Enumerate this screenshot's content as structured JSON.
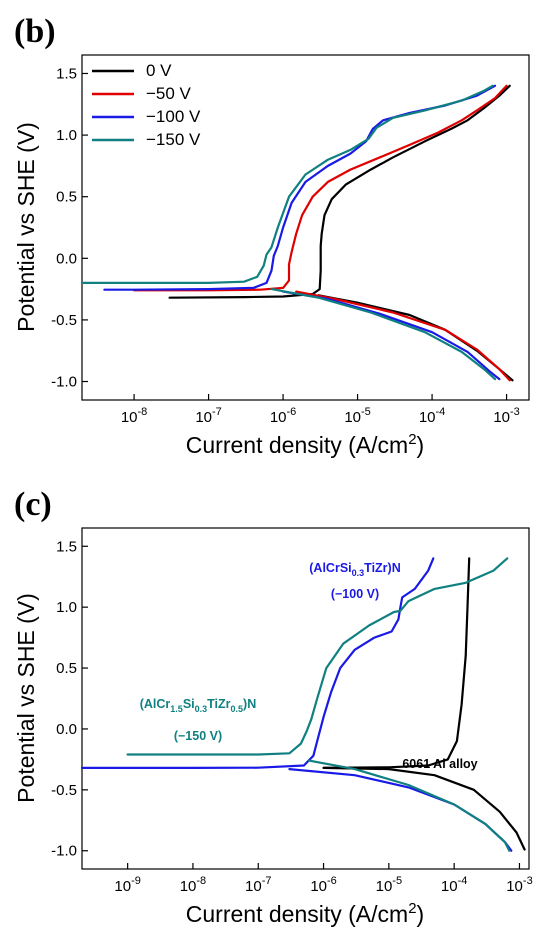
{
  "chart_data": [
    {
      "panel": "(b)",
      "type": "line",
      "title": "",
      "xlabel": "Current density (A/cm",
      "xlabel_sup": "2",
      "xlabel_end": ")",
      "ylabel": "Potential vs SHE (V)",
      "x_scale": "log",
      "xlim": [
        2e-09,
        0.002
      ],
      "ylim": [
        -1.15,
        1.65
      ],
      "x_ticks": [
        {
          "value": 1e-08,
          "base": "10",
          "exp": "-8"
        },
        {
          "value": 1e-07,
          "base": "10",
          "exp": "-7"
        },
        {
          "value": 1e-06,
          "base": "10",
          "exp": "-6"
        },
        {
          "value": 1e-05,
          "base": "10",
          "exp": "-5"
        },
        {
          "value": 0.0001,
          "base": "10",
          "exp": "-4"
        },
        {
          "value": 0.001,
          "base": "10",
          "exp": "-3"
        }
      ],
      "y_ticks": [
        "-1.0",
        "-0.5",
        "0.0",
        "0.5",
        "1.0",
        "1.5"
      ],
      "y_tick_values": [
        -1.0,
        -0.5,
        0.0,
        0.5,
        1.0,
        1.5
      ],
      "legend_position": "top-left",
      "series": [
        {
          "name": "0 V",
          "color": "#000000",
          "points": [
            [
              3e-08,
              -0.32
            ],
            [
              3e-07,
              -0.315
            ],
            [
              1e-06,
              -0.31
            ],
            [
              2.5e-06,
              -0.29
            ],
            [
              3.1e-06,
              -0.25
            ],
            [
              3.2e-06,
              -0.1
            ],
            [
              3.2e-06,
              0.1
            ],
            [
              3.3e-06,
              0.2
            ],
            [
              3.6e-06,
              0.35
            ],
            [
              4.5e-06,
              0.48
            ],
            [
              7e-06,
              0.6
            ],
            [
              1.5e-05,
              0.72
            ],
            [
              3e-05,
              0.82
            ],
            [
              8e-05,
              0.95
            ],
            [
              0.00018,
              1.05
            ],
            [
              0.0003,
              1.12
            ],
            [
              0.0005,
              1.22
            ],
            [
              0.0008,
              1.32
            ],
            [
              0.0011,
              1.4
            ]
          ]
        },
        {
          "name": "0 V",
          "color": "#000000",
          "points": [
            [
              3e-06,
              -0.3
            ],
            [
              1e-05,
              -0.36
            ],
            [
              5e-05,
              -0.46
            ],
            [
              0.00015,
              -0.58
            ],
            [
              0.0004,
              -0.75
            ],
            [
              0.0008,
              -0.9
            ],
            [
              0.0012,
              -0.99
            ]
          ]
        },
        {
          "name": "−50 V",
          "color": "#e00000",
          "points": [
            [
              1e-08,
              -0.26
            ],
            [
              1e-07,
              -0.26
            ],
            [
              5e-07,
              -0.255
            ],
            [
              1e-06,
              -0.24
            ],
            [
              1.2e-06,
              -0.18
            ],
            [
              1.2e-06,
              -0.05
            ],
            [
              1.3e-06,
              0.05
            ],
            [
              1.5e-06,
              0.2
            ],
            [
              1.8e-06,
              0.35
            ],
            [
              2.5e-06,
              0.5
            ],
            [
              4e-06,
              0.62
            ],
            [
              8e-06,
              0.72
            ],
            [
              2e-05,
              0.82
            ],
            [
              5e-05,
              0.92
            ],
            [
              0.00012,
              1.02
            ],
            [
              0.00025,
              1.12
            ],
            [
              0.0004,
              1.2
            ],
            [
              0.0007,
              1.3
            ],
            [
              0.001,
              1.4
            ]
          ]
        },
        {
          "name": "−50 V",
          "color": "#e00000",
          "points": [
            [
              1.5e-06,
              -0.27
            ],
            [
              5e-06,
              -0.33
            ],
            [
              3e-05,
              -0.44
            ],
            [
              0.00015,
              -0.58
            ],
            [
              0.0004,
              -0.74
            ],
            [
              0.0008,
              -0.9
            ],
            [
              0.0011,
              -0.99
            ]
          ]
        },
        {
          "name": "−100 V",
          "color": "#1a1ae6",
          "points": [
            [
              4e-09,
              -0.255
            ],
            [
              1e-08,
              -0.255
            ],
            [
              1e-07,
              -0.25
            ],
            [
              4e-07,
              -0.24
            ],
            [
              6e-07,
              -0.2
            ],
            [
              7e-07,
              -0.1
            ],
            [
              7.5e-07,
              0.02
            ],
            [
              8.5e-07,
              0.1
            ],
            [
              1e-06,
              0.25
            ],
            [
              1.3e-06,
              0.45
            ],
            [
              2e-06,
              0.62
            ],
            [
              4e-06,
              0.75
            ],
            [
              8e-06,
              0.85
            ],
            [
              1.3e-05,
              0.95
            ],
            [
              1.6e-05,
              1.05
            ],
            [
              2.2e-05,
              1.12
            ],
            [
              5e-05,
              1.18
            ],
            [
              0.00015,
              1.24
            ],
            [
              0.0004,
              1.32
            ],
            [
              0.0007,
              1.4
            ]
          ]
        },
        {
          "name": "−100 V",
          "color": "#1a1ae6",
          "points": [
            [
              1e-06,
              -0.27
            ],
            [
              4e-06,
              -0.33
            ],
            [
              2e-05,
              -0.45
            ],
            [
              0.0001,
              -0.6
            ],
            [
              0.0003,
              -0.76
            ],
            [
              0.0006,
              -0.92
            ],
            [
              0.0008,
              -0.98
            ]
          ]
        },
        {
          "name": "−150 V",
          "color": "#108080",
          "points": [
            [
              2e-09,
              -0.2
            ],
            [
              1e-08,
              -0.2
            ],
            [
              1e-07,
              -0.2
            ],
            [
              3e-07,
              -0.19
            ],
            [
              4.5e-07,
              -0.15
            ],
            [
              5.5e-07,
              -0.06
            ],
            [
              6e-07,
              0.03
            ],
            [
              7e-07,
              0.09
            ],
            [
              8.5e-07,
              0.25
            ],
            [
              1.2e-06,
              0.5
            ],
            [
              2e-06,
              0.68
            ],
            [
              4e-06,
              0.8
            ],
            [
              8e-06,
              0.88
            ],
            [
              1.4e-05,
              0.97
            ],
            [
              1.8e-05,
              1.06
            ],
            [
              3e-05,
              1.14
            ],
            [
              8e-05,
              1.2
            ],
            [
              0.00025,
              1.28
            ],
            [
              0.0005,
              1.36
            ],
            [
              0.00065,
              1.4
            ]
          ]
        },
        {
          "name": "−150 V",
          "color": "#108080",
          "points": [
            [
              7e-07,
              -0.25
            ],
            [
              3e-06,
              -0.32
            ],
            [
              1.5e-05,
              -0.44
            ],
            [
              8e-05,
              -0.6
            ],
            [
              0.00025,
              -0.76
            ],
            [
              0.0005,
              -0.9
            ],
            [
              0.0007,
              -0.98
            ]
          ]
        }
      ],
      "legend": [
        {
          "label": "0 V",
          "color": "#000000"
        },
        {
          "label": "−50 V",
          "color": "#e00000"
        },
        {
          "label": "−100 V",
          "color": "#1a1ae6"
        },
        {
          "label": "−150 V",
          "color": "#108080"
        }
      ]
    },
    {
      "panel": "(c)",
      "type": "line",
      "title": "",
      "xlabel": "Current density (A/cm",
      "xlabel_sup": "2",
      "xlabel_end": ")",
      "ylabel": "Potential vs SHE (V)",
      "x_scale": "log",
      "xlim": [
        2e-10,
        0.0014
      ],
      "ylim": [
        -1.15,
        1.65
      ],
      "x_ticks": [
        {
          "value": 1e-09,
          "base": "10",
          "exp": "-9"
        },
        {
          "value": 1e-08,
          "base": "10",
          "exp": "-8"
        },
        {
          "value": 1e-07,
          "base": "10",
          "exp": "-7"
        },
        {
          "value": 1e-06,
          "base": "10",
          "exp": "-6"
        },
        {
          "value": 1e-05,
          "base": "10",
          "exp": "-5"
        },
        {
          "value": 0.0001,
          "base": "10",
          "exp": "-4"
        },
        {
          "value": 0.001,
          "base": "10",
          "exp": "-3"
        }
      ],
      "y_ticks": [
        "-1.0",
        "-0.5",
        "0.0",
        "0.5",
        "1.0",
        "1.5"
      ],
      "y_tick_values": [
        -1.0,
        -0.5,
        0.0,
        0.5,
        1.0,
        1.5
      ],
      "series": [
        {
          "name": "6061 Al alloy",
          "color": "#000000",
          "points": [
            [
              1e-06,
              -0.32
            ],
            [
              1e-05,
              -0.315
            ],
            [
              4e-05,
              -0.3
            ],
            [
              8e-05,
              -0.25
            ],
            [
              0.00011,
              -0.1
            ],
            [
              0.00013,
              0.2
            ],
            [
              0.00015,
              0.6
            ],
            [
              0.00016,
              1.0
            ],
            [
              0.00017,
              1.4
            ]
          ]
        },
        {
          "name": "6061 Al alloy",
          "color": "#000000",
          "points": [
            [
              1e-06,
              -0.32
            ],
            [
              1e-05,
              -0.33
            ],
            [
              5e-05,
              -0.38
            ],
            [
              0.0002,
              -0.5
            ],
            [
              0.0005,
              -0.68
            ],
            [
              0.0009,
              -0.85
            ],
            [
              0.0012,
              -0.99
            ]
          ]
        },
        {
          "name": "(AlCrSi0.3TiZr)N (−100 V)",
          "color": "#1a1ae6",
          "points": [
            [
              2e-10,
              -0.32
            ],
            [
              1e-09,
              -0.32
            ],
            [
              1e-08,
              -0.32
            ],
            [
              1e-07,
              -0.318
            ],
            [
              5e-07,
              -0.3
            ],
            [
              7e-07,
              -0.22
            ],
            [
              8e-07,
              -0.1
            ],
            [
              1e-06,
              0.1
            ],
            [
              1.3e-06,
              0.3
            ],
            [
              1.8e-06,
              0.5
            ],
            [
              3e-06,
              0.65
            ],
            [
              6e-06,
              0.75
            ],
            [
              1.1e-05,
              0.8
            ],
            [
              1.4e-05,
              0.9
            ],
            [
              1.5e-05,
              1.0
            ],
            [
              1.6e-05,
              1.08
            ],
            [
              2.5e-05,
              1.15
            ],
            [
              4e-05,
              1.3
            ],
            [
              4.8e-05,
              1.4
            ]
          ]
        },
        {
          "name": "(AlCrSi0.3TiZr)N (−100 V)",
          "color": "#1a1ae6",
          "points": [
            [
              3e-07,
              -0.33
            ],
            [
              3e-06,
              -0.38
            ],
            [
              2e-05,
              -0.48
            ],
            [
              0.0001,
              -0.62
            ],
            [
              0.0003,
              -0.78
            ],
            [
              0.0006,
              -0.93
            ],
            [
              0.00075,
              -1.0
            ]
          ]
        },
        {
          "name": "(AlCr1.5Si0.3TiZr0.5)N (−150 V)",
          "color": "#108080",
          "points": [
            [
              1e-09,
              -0.21
            ],
            [
              1e-08,
              -0.21
            ],
            [
              1e-07,
              -0.21
            ],
            [
              3e-07,
              -0.2
            ],
            [
              4.5e-07,
              -0.12
            ],
            [
              5.5e-07,
              -0.02
            ],
            [
              6.5e-07,
              0.08
            ],
            [
              8e-07,
              0.25
            ],
            [
              1.1e-06,
              0.5
            ],
            [
              2e-06,
              0.7
            ],
            [
              5e-06,
              0.85
            ],
            [
              1.2e-05,
              0.96
            ],
            [
              1.5e-05,
              0.97
            ],
            [
              2e-05,
              1.05
            ],
            [
              5e-05,
              1.15
            ],
            [
              0.00015,
              1.2
            ],
            [
              0.0004,
              1.3
            ],
            [
              0.00065,
              1.4
            ]
          ]
        },
        {
          "name": "(AlCr1.5Si0.3TiZr0.5)N (−150 V)",
          "color": "#108080",
          "points": [
            [
              6e-07,
              -0.26
            ],
            [
              3e-06,
              -0.33
            ],
            [
              2e-05,
              -0.46
            ],
            [
              0.0001,
              -0.62
            ],
            [
              0.0003,
              -0.78
            ],
            [
              0.0006,
              -0.93
            ],
            [
              0.0007,
              -1.0
            ]
          ]
        }
      ],
      "annotations": [
        {
          "parts": [
            [
              "(AlCrSi",
              ""
            ],
            [
              "0.3",
              "sub"
            ],
            [
              "TiZr)N",
              ""
            ]
          ],
          "color": "#1a1ae6"
        },
        {
          "parts": [
            [
              "(−100 V)",
              ""
            ]
          ],
          "color": "#1a1ae6"
        },
        {
          "parts": [
            [
              "(AlCr",
              ""
            ],
            [
              "1.5",
              "sub"
            ],
            [
              "Si",
              ""
            ],
            [
              "0.3",
              "sub"
            ],
            [
              "TiZr",
              ""
            ],
            [
              "0.5",
              "sub"
            ],
            [
              ")N",
              ""
            ]
          ],
          "color": "#108080"
        },
        {
          "parts": [
            [
              "(−150 V)",
              ""
            ]
          ],
          "color": "#108080"
        },
        {
          "parts": [
            [
              "6061 Al alloy",
              ""
            ]
          ],
          "color": "#000000"
        }
      ]
    }
  ]
}
